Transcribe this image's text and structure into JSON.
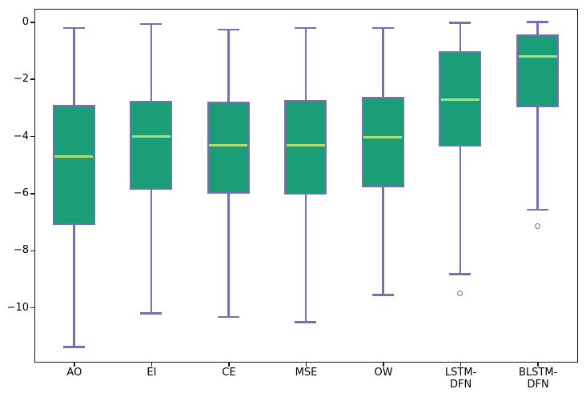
{
  "chart_data": {
    "type": "boxplot",
    "orientation": "vertical",
    "title": "",
    "xlabel": "",
    "ylabel": "",
    "grid": false,
    "legend_position": "none",
    "ylim": [
      -11.87,
      0.43
    ],
    "yticks": [
      0,
      -2,
      -4,
      -6,
      -8,
      -10
    ],
    "ytick_labels": [
      "0",
      "−2",
      "−4",
      "−6",
      "−8",
      "−10"
    ],
    "categories": [
      "AO",
      "EI",
      "CE",
      "MSE",
      "OW",
      "LSTM-DFN",
      "BLSTM-DFN"
    ],
    "category_label_lines": [
      [
        "AO"
      ],
      [
        "EI"
      ],
      [
        "CE"
      ],
      [
        "MSE"
      ],
      [
        "OW"
      ],
      [
        "LSTM-",
        "DFN"
      ],
      [
        "BLSTM-",
        "DFN"
      ]
    ],
    "series": [
      {
        "name": "AO",
        "whisker_low": -11.38,
        "q1": -7.11,
        "median": -4.72,
        "q3": -2.91,
        "whisker_high": -0.22,
        "outliers": []
      },
      {
        "name": "EI",
        "whisker_low": -10.21,
        "q1": -5.87,
        "median": -4.0,
        "q3": -2.77,
        "whisker_high": -0.08,
        "outliers": []
      },
      {
        "name": "CE",
        "whisker_low": -10.33,
        "q1": -6.02,
        "median": -4.33,
        "q3": -2.8,
        "whisker_high": -0.27,
        "outliers": []
      },
      {
        "name": "MSE",
        "whisker_low": -10.51,
        "q1": -6.05,
        "median": -4.31,
        "q3": -2.75,
        "whisker_high": -0.22,
        "outliers": []
      },
      {
        "name": "OW",
        "whisker_low": -9.56,
        "q1": -5.79,
        "median": -4.03,
        "q3": -2.63,
        "whisker_high": -0.22,
        "outliers": []
      },
      {
        "name": "LSTM-DFN",
        "whisker_low": -8.83,
        "q1": -4.35,
        "median": -2.73,
        "q3": -1.02,
        "whisker_high": -0.03,
        "outliers": [
          -9.5
        ]
      },
      {
        "name": "BLSTM-DFN",
        "whisker_low": -6.58,
        "q1": -3.0,
        "median": -1.21,
        "q3": -0.43,
        "whisker_high": 0.0,
        "outliers": [
          -7.16
        ]
      }
    ],
    "style": {
      "box_fill": "#1b9e77",
      "box_edge": "#7570b3",
      "whisker_color": "#7570b3",
      "cap_color": "#7570b3",
      "median_color": "#aede76",
      "outlier_edge": "#777777",
      "axis_color": "#1a1a1a",
      "background": "#ffffff"
    }
  }
}
